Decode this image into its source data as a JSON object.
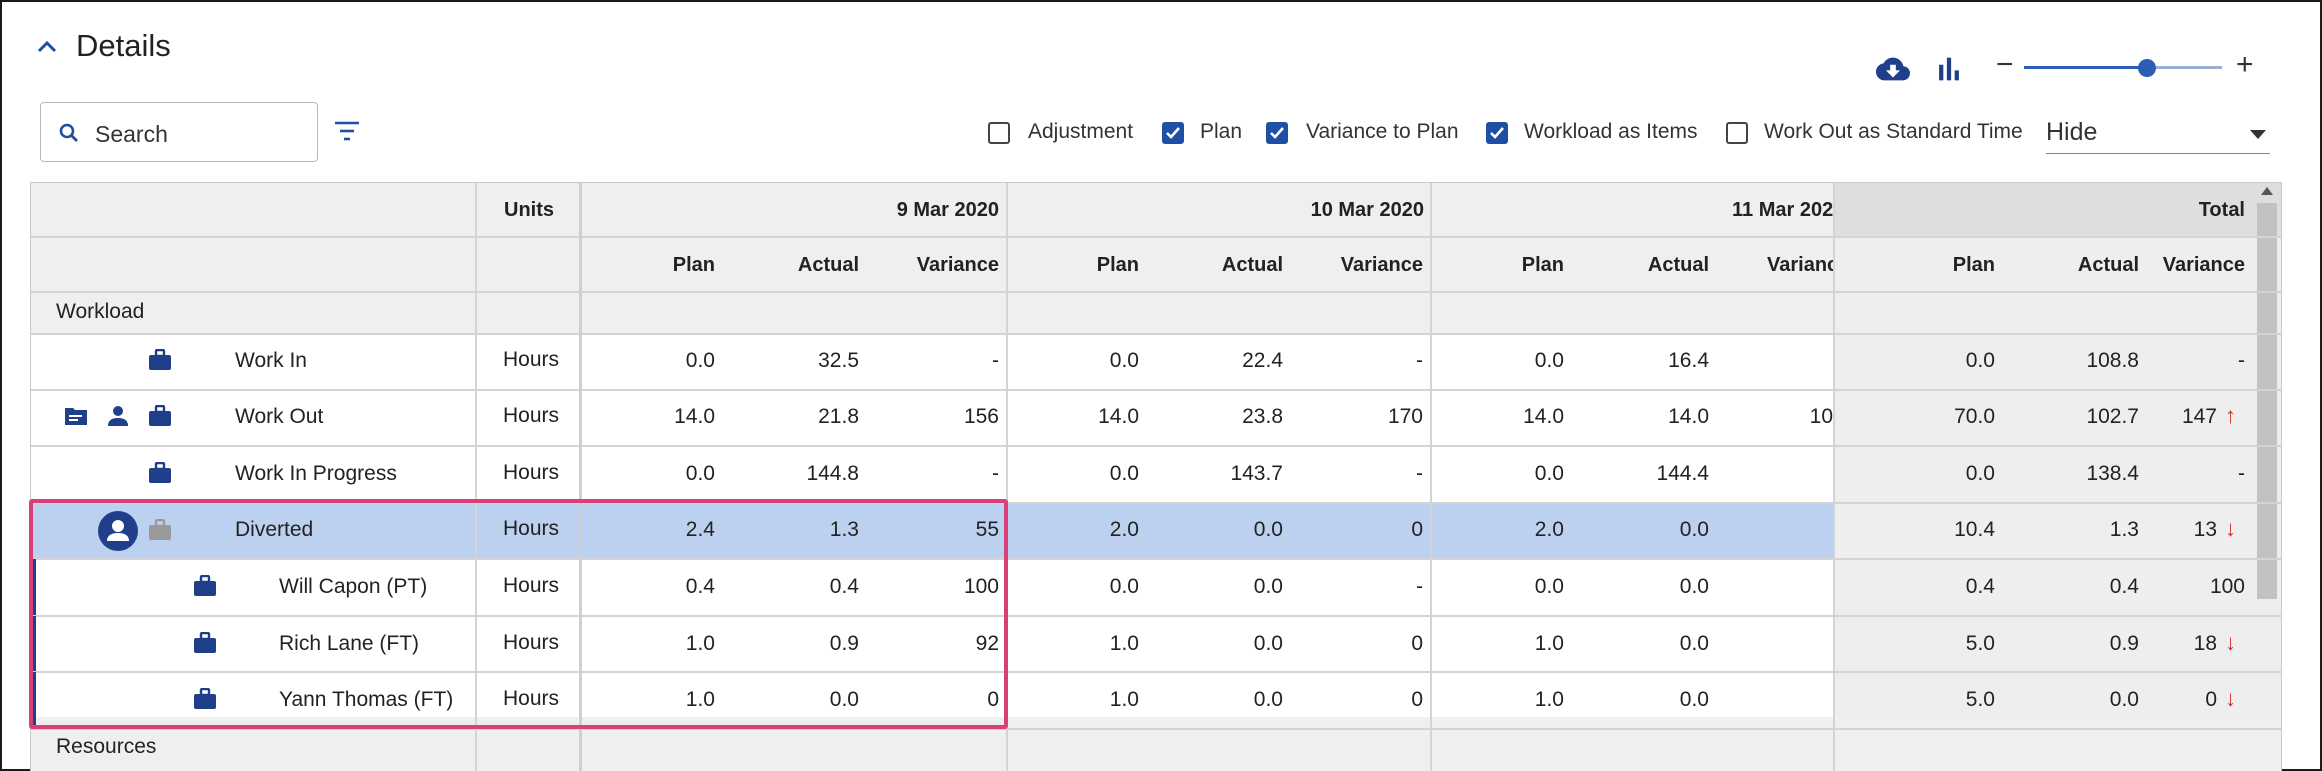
{
  "header": {
    "title": "Details"
  },
  "search": {
    "placeholder": "Search"
  },
  "toggles": [
    {
      "label": "Adjustment",
      "checked": false
    },
    {
      "label": "Plan",
      "checked": true
    },
    {
      "label": "Variance to Plan",
      "checked": true
    },
    {
      "label": "Workload as Items",
      "checked": true
    },
    {
      "label": "Work Out as Standard Time",
      "checked": false
    }
  ],
  "hide_select": {
    "value": "Hide"
  },
  "slider": {
    "minus": "−",
    "plus": "+",
    "level": 0.62
  },
  "table": {
    "units_header": "Units",
    "dates": [
      "9 Mar 2020",
      "10 Mar 2020",
      "11 Mar 202"
    ],
    "total_header": "Total",
    "sub": {
      "plan": "Plan",
      "actual": "Actual",
      "variance": "Variance",
      "variance_cut": "Varianc"
    },
    "section_workload": "Workload",
    "section_resources": "Resources",
    "rows": [
      {
        "name": "Work In",
        "units": "Hours",
        "d1": [
          "0.0",
          "32.5",
          "-"
        ],
        "d2": [
          "0.0",
          "22.4",
          "-"
        ],
        "d3": [
          "0.0",
          "16.4",
          ""
        ],
        "total": [
          "0.0",
          "108.8",
          "-"
        ],
        "arrow": ""
      },
      {
        "name": "Work Out",
        "units": "Hours",
        "d1": [
          "14.0",
          "21.8",
          "156"
        ],
        "d2": [
          "14.0",
          "23.8",
          "170"
        ],
        "d3": [
          "14.0",
          "14.0",
          "10"
        ],
        "total": [
          "70.0",
          "102.7",
          "147"
        ],
        "arrow": "↑"
      },
      {
        "name": "Work In Progress",
        "units": "Hours",
        "d1": [
          "0.0",
          "144.8",
          "-"
        ],
        "d2": [
          "0.0",
          "143.7",
          "-"
        ],
        "d3": [
          "0.0",
          "144.4",
          ""
        ],
        "total": [
          "0.0",
          "138.4",
          "-"
        ],
        "arrow": ""
      },
      {
        "name": "Diverted",
        "units": "Hours",
        "d1": [
          "2.4",
          "1.3",
          "55"
        ],
        "d2": [
          "2.0",
          "0.0",
          "0"
        ],
        "d3": [
          "2.0",
          "0.0",
          ""
        ],
        "total": [
          "10.4",
          "1.3",
          "13"
        ],
        "arrow": "↓"
      },
      {
        "name": "Will Capon (PT)",
        "units": "Hours",
        "d1": [
          "0.4",
          "0.4",
          "100"
        ],
        "d2": [
          "0.0",
          "0.0",
          "-"
        ],
        "d3": [
          "0.0",
          "0.0",
          ""
        ],
        "total": [
          "0.4",
          "0.4",
          "100"
        ],
        "arrow": ""
      },
      {
        "name": "Rich Lane (FT)",
        "units": "Hours",
        "d1": [
          "1.0",
          "0.9",
          "92"
        ],
        "d2": [
          "1.0",
          "0.0",
          "0"
        ],
        "d3": [
          "1.0",
          "0.0",
          ""
        ],
        "total": [
          "5.0",
          "0.9",
          "18"
        ],
        "arrow": "↓"
      },
      {
        "name": "Yann Thomas (FT)",
        "units": "Hours",
        "d1": [
          "1.0",
          "0.0",
          "0"
        ],
        "d2": [
          "1.0",
          "0.0",
          "0"
        ],
        "d3": [
          "1.0",
          "0.0",
          ""
        ],
        "total": [
          "5.0",
          "0.0",
          "0"
        ],
        "arrow": "↓"
      }
    ]
  },
  "colors": {
    "accent": "#1f4fa3",
    "selected_row": "#bcd0f0",
    "total_bg": "#eeeeee",
    "highlight": "#d93f78",
    "arrow": "#d32f2f"
  }
}
